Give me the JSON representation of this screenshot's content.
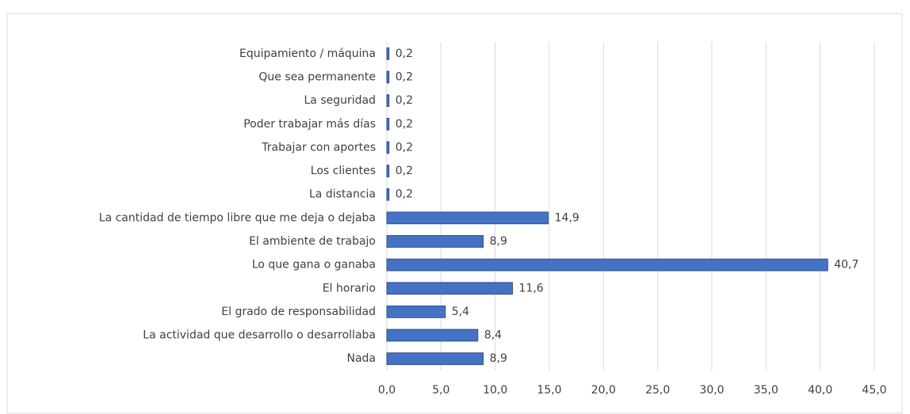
{
  "chart_data": {
    "type": "bar",
    "orientation": "horizontal",
    "categories": [
      "Equipamiento / máquina",
      "Que sea permanente",
      "La seguridad",
      "Poder trabajar más días",
      "Trabajar con aportes",
      "Los clientes",
      "La distancia",
      "La cantidad de tiempo libre que me deja o dejaba",
      "El ambiente de trabajo",
      "Lo que gana o ganaba",
      "El horario",
      "El grado de responsabilidad",
      "La actividad que desarrollo o desarrollaba",
      "Nada"
    ],
    "values": [
      0.2,
      0.2,
      0.2,
      0.2,
      0.2,
      0.2,
      0.2,
      14.9,
      8.9,
      40.7,
      11.6,
      5.4,
      8.4,
      8.9
    ],
    "value_labels": [
      "0,2",
      "0,2",
      "0,2",
      "0,2",
      "0,2",
      "0,2",
      "0,2",
      "14,9",
      "8,9",
      "40,7",
      "11,6",
      "5,4",
      "8,4",
      "8,9"
    ],
    "color": "#4472c4",
    "xlim": [
      0,
      45
    ],
    "xticks": [
      {
        "value": 0,
        "label": "0,0"
      },
      {
        "value": 5,
        "label": "5,0"
      },
      {
        "value": 10,
        "label": "10,0"
      },
      {
        "value": 15,
        "label": "15,0"
      },
      {
        "value": 20,
        "label": "20,0"
      },
      {
        "value": 25,
        "label": "25,0"
      },
      {
        "value": 30,
        "label": "30,0"
      },
      {
        "value": 35,
        "label": "35,0"
      },
      {
        "value": 40,
        "label": "40,0"
      },
      {
        "value": 45,
        "label": "45,0"
      }
    ],
    "grid": true
  }
}
